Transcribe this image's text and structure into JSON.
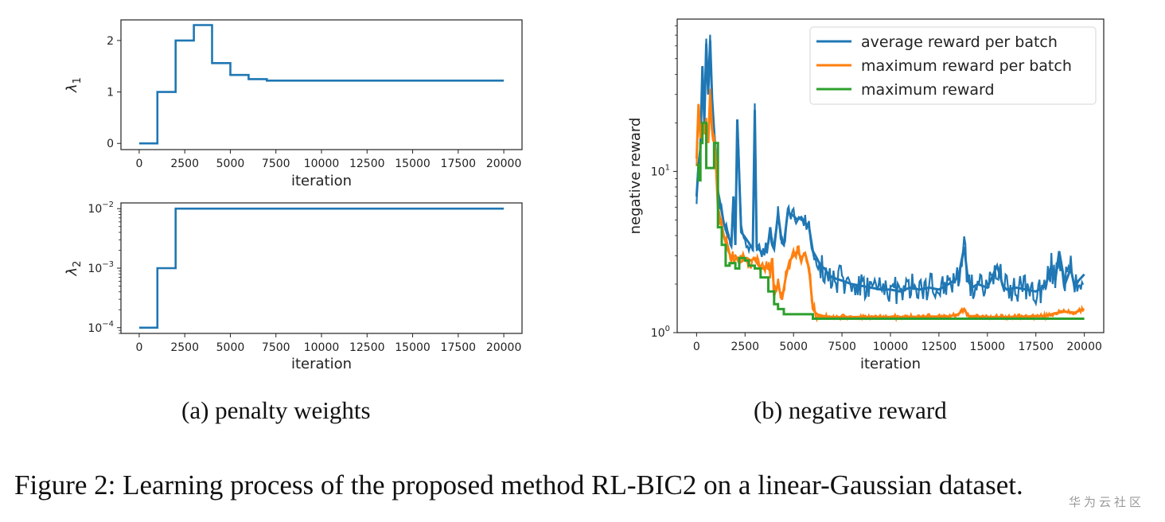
{
  "chart_data": [
    {
      "type": "line",
      "panel": "top-left",
      "xlabel": "iteration",
      "ylabel": "λ1",
      "ylabel_base": "λ",
      "ylabel_sub": "1",
      "xlim": [
        -1000,
        21000
      ],
      "ylim": [
        -0.12,
        2.4
      ],
      "xticks": [
        0,
        2500,
        5000,
        7500,
        10000,
        12500,
        15000,
        17500,
        20000
      ],
      "xtick_labels": [
        "0",
        "2500",
        "5000",
        "7500",
        "10000",
        "12500",
        "15000",
        "17500",
        "20000"
      ],
      "yticks": [
        0,
        1,
        2
      ],
      "ytick_labels": [
        "0",
        "1",
        "2"
      ],
      "series": [
        {
          "name": "lambda1",
          "color": "#1f77b4",
          "step": true,
          "x": [
            0,
            1000,
            2000,
            3000,
            4000,
            5000,
            6000,
            7000,
            20000
          ],
          "y": [
            0,
            1,
            2,
            2.3,
            1.56,
            1.33,
            1.25,
            1.22,
            1.22
          ]
        }
      ]
    },
    {
      "type": "line",
      "panel": "bottom-left",
      "xlabel": "iteration",
      "ylabel": "λ2",
      "ylabel_base": "λ",
      "ylabel_sub": "2",
      "yscale": "log",
      "xlim": [
        -1000,
        21000
      ],
      "ylim": [
        8e-05,
        0.0125
      ],
      "xticks": [
        0,
        2500,
        5000,
        7500,
        10000,
        12500,
        15000,
        17500,
        20000
      ],
      "xtick_labels": [
        "0",
        "2500",
        "5000",
        "7500",
        "10000",
        "12500",
        "15000",
        "17500",
        "20000"
      ],
      "yticks": [
        0.0001,
        0.001,
        0.01
      ],
      "ytick_labels": [
        {
          "base": "10",
          "exp": "−4"
        },
        {
          "base": "10",
          "exp": "−3"
        },
        {
          "base": "10",
          "exp": "−2"
        }
      ],
      "series": [
        {
          "name": "lambda2",
          "color": "#1f77b4",
          "step": true,
          "x": [
            0,
            1000,
            2000,
            20000
          ],
          "y": [
            0.0001,
            0.001,
            0.01,
            0.01
          ]
        }
      ]
    },
    {
      "type": "line",
      "panel": "right",
      "xlabel": "iteration",
      "ylabel": "negative reward",
      "yscale": "log",
      "xlim": [
        -1000,
        21000
      ],
      "ylim": [
        1,
        88
      ],
      "xticks": [
        0,
        2500,
        5000,
        7500,
        10000,
        12500,
        15000,
        17500,
        20000
      ],
      "xtick_labels": [
        "0",
        "2500",
        "5000",
        "7500",
        "10000",
        "12500",
        "15000",
        "17500",
        "20000"
      ],
      "yticks": [
        1,
        10
      ],
      "ytick_labels": [
        {
          "base": "10",
          "exp": "0"
        },
        {
          "base": "10",
          "exp": "1"
        }
      ],
      "legend": "top-right",
      "series": [
        {
          "name": "average reward per batch",
          "color": "#1f77b4",
          "x": [
            0,
            100,
            200,
            300,
            400,
            500,
            600,
            700,
            800,
            900,
            1000,
            1100,
            1200,
            1400,
            1600,
            1800,
            1900,
            2000,
            2100,
            2300,
            2500,
            2700,
            2900,
            3000,
            3100,
            3300,
            3500,
            3700,
            3800,
            3900,
            4000,
            4200,
            4400,
            4500,
            4700,
            4800,
            5000,
            5200,
            5400,
            5600,
            5800,
            6000,
            6200,
            6400,
            6600,
            6800,
            7000,
            7500,
            8000,
            8500,
            9000,
            9500,
            10000,
            10500,
            11000,
            11500,
            12000,
            12500,
            13000,
            13500,
            13800,
            14000,
            14200,
            14500,
            15000,
            15500,
            15800,
            16000,
            16500,
            17000,
            17500,
            18000,
            18300,
            18500,
            18700,
            19000,
            19300,
            19500,
            19700,
            20000
          ],
          "y": [
            7,
            11,
            14,
            45,
            20,
            62,
            30,
            65,
            28,
            18,
            12,
            7.5,
            6.5,
            4.8,
            4.0,
            3.6,
            7,
            3.5,
            21,
            4.2,
            3.9,
            3.6,
            3.3,
            24,
            3.4,
            3.2,
            3.1,
            3.6,
            4.5,
            3.5,
            3.3,
            5.5,
            3.6,
            3.5,
            5.6,
            5.5,
            5.3,
            5.0,
            5.2,
            4.8,
            4.5,
            3.2,
            2.9,
            2.6,
            2.5,
            2.3,
            2.2,
            2.1,
            2.0,
            1.95,
            1.9,
            1.85,
            1.85,
            1.8,
            1.9,
            1.85,
            1.9,
            1.85,
            2.0,
            2.2,
            3.4,
            2.1,
            1.9,
            2.0,
            1.9,
            2.6,
            1.95,
            1.85,
            1.9,
            1.85,
            1.8,
            1.95,
            2.6,
            2.1,
            3.2,
            2.0,
            2.5,
            1.9,
            2.1,
            2.3
          ]
        },
        {
          "name": "maximum reward per batch",
          "color": "#ff7f0e",
          "x": [
            0,
            100,
            200,
            300,
            400,
            500,
            600,
            700,
            800,
            900,
            1000,
            1100,
            1200,
            1400,
            1600,
            1800,
            2000,
            2200,
            2400,
            2600,
            2800,
            3000,
            3200,
            3400,
            3600,
            3800,
            3900,
            4000,
            4200,
            4400,
            4600,
            4800,
            5000,
            5200,
            5400,
            5600,
            5800,
            6000,
            6200,
            6500,
            7000,
            8000,
            9000,
            10000,
            11000,
            12000,
            13000,
            13500,
            13800,
            14000,
            14500,
            15000,
            16000,
            17000,
            18000,
            18500,
            19000,
            19500,
            20000
          ],
          "y": [
            12,
            26,
            16,
            20,
            17,
            20,
            15,
            30,
            18,
            16,
            11,
            6.0,
            5.2,
            4.0,
            3.3,
            2.9,
            3.0,
            2.7,
            2.8,
            2.9,
            2.8,
            2.9,
            2.6,
            2.5,
            2.6,
            2.4,
            2.9,
            1.7,
            2.0,
            1.6,
            2.2,
            2.8,
            3.0,
            3.2,
            2.9,
            3.1,
            2.5,
            1.4,
            1.3,
            1.27,
            1.25,
            1.25,
            1.25,
            1.25,
            1.25,
            1.26,
            1.26,
            1.3,
            1.4,
            1.27,
            1.26,
            1.25,
            1.25,
            1.26,
            1.27,
            1.32,
            1.35,
            1.33,
            1.4
          ]
        },
        {
          "name": "maximum reward",
          "color": "#2ca02c",
          "step": true,
          "x": [
            0,
            100,
            200,
            300,
            500,
            700,
            900,
            1100,
            1300,
            1500,
            1700,
            2000,
            2200,
            2500,
            2700,
            3000,
            3300,
            3700,
            4000,
            4200,
            4500,
            5000,
            6000,
            20000
          ],
          "y": [
            11,
            8.8,
            15,
            20,
            10.5,
            10.5,
            15,
            4.5,
            3.5,
            2.6,
            2.7,
            2.5,
            2.9,
            2.8,
            2.6,
            2.5,
            2.2,
            1.8,
            1.5,
            1.4,
            1.3,
            1.3,
            1.22,
            1.22
          ]
        }
      ]
    }
  ],
  "captions": {
    "sub_a": "(a) penalty weights",
    "sub_b": "(b) negative reward",
    "figure": "Figure 2: Learning process of the proposed method RL-BIC2 on a linear-Gaussian dataset."
  },
  "watermark": "华为云社区"
}
